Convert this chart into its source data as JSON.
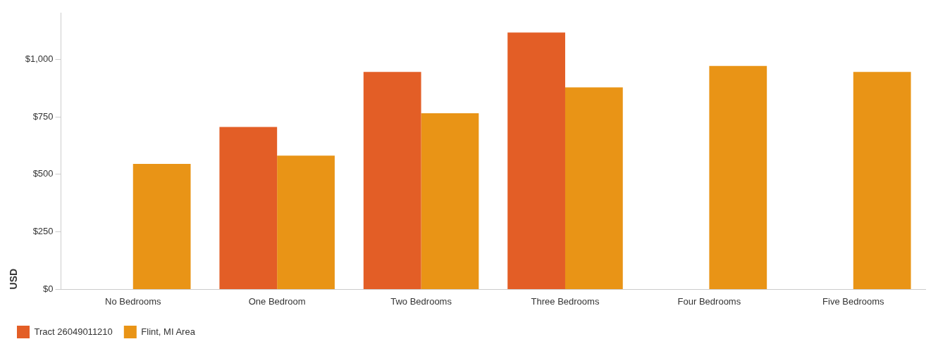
{
  "chart_data": {
    "type": "bar",
    "categories": [
      "No Bedrooms",
      "One Bedroom",
      "Two Bedrooms",
      "Three Bedrooms",
      "Four Bedrooms",
      "Five Bedrooms"
    ],
    "series": [
      {
        "name": "Tract 26049011210",
        "color": "#e35e26",
        "values": [
          null,
          706,
          945,
          1116,
          null,
          null
        ]
      },
      {
        "name": "Flint, MI Area",
        "color": "#e99416",
        "values": [
          545,
          581,
          765,
          878,
          971,
          945
        ]
      }
    ],
    "ylabel": "USD",
    "ylim": [
      0,
      1200
    ],
    "yticks": [
      {
        "value": 0,
        "label": "$0"
      },
      {
        "value": 250,
        "label": "$250"
      },
      {
        "value": 500,
        "label": "$500"
      },
      {
        "value": 750,
        "label": "$750"
      },
      {
        "value": 1000,
        "label": "$1,000"
      }
    ],
    "grid": false,
    "legend": "bottom left"
  }
}
